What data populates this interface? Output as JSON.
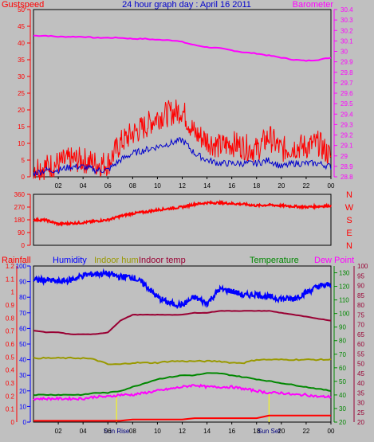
{
  "title": "24 hour graph day : April 16 2011",
  "colors": {
    "background": "#c0c0c0",
    "gust": "#ff0000",
    "wind": "#0000cc",
    "barometer": "#ff00ff",
    "direction": "#ff0000",
    "humidity": "#0000ff",
    "indoor_hum": "#999900",
    "indoor_temp": "#990033",
    "temperature": "#008800",
    "dew_point": "#ff00ff",
    "rainfall": "#ff0000",
    "solar": "#ffff00"
  },
  "chart_data": [
    {
      "type": "line",
      "panel": "wind",
      "title": "24 hour graph day : April 16 2011",
      "left_axis_label": "Gustspeed",
      "right_axis_label": "Barometer",
      "x_ticks": [
        "02",
        "04",
        "06",
        "08",
        "10",
        "12",
        "14",
        "16",
        "18",
        "20",
        "22",
        "00"
      ],
      "ylim_left": [
        0,
        50
      ],
      "y_ticks_left": [
        "50",
        "45",
        "40",
        "35",
        "30",
        "25",
        "20",
        "15",
        "10",
        "5",
        "0"
      ],
      "ylim_right": [
        28.8,
        30.4
      ],
      "y_ticks_right": [
        "30.4",
        "30.3",
        "30.2",
        "30.1",
        "30",
        "29.9",
        "29.8",
        "29.7",
        "29.6",
        "29.5",
        "29.4",
        "29.3",
        "29.2",
        "29.1",
        "29",
        "28.9",
        "28.8"
      ],
      "x_hours": [
        0,
        1,
        2,
        3,
        4,
        5,
        6,
        7,
        8,
        9,
        10,
        11,
        12,
        13,
        14,
        15,
        16,
        17,
        18,
        19,
        20,
        21,
        22,
        23,
        24
      ],
      "series": [
        {
          "key": "gust",
          "values": [
            3,
            3,
            4,
            5,
            5,
            4,
            4,
            10,
            13,
            15,
            18,
            19,
            20,
            13,
            11,
            9,
            10,
            9,
            8,
            12,
            8,
            9,
            9,
            10,
            6
          ]
        },
        {
          "key": "wind",
          "values": [
            1,
            2,
            2,
            3,
            3,
            2,
            2,
            5,
            7,
            8,
            9,
            10,
            11,
            7,
            5,
            4,
            4,
            4,
            4,
            5,
            3,
            4,
            4,
            4,
            3
          ]
        },
        {
          "key": "barometer",
          "values": [
            30.15,
            30.15,
            30.14,
            30.14,
            30.14,
            30.13,
            30.13,
            30.13,
            30.12,
            30.12,
            30.11,
            30.11,
            30.09,
            30.06,
            30.04,
            30.03,
            30.01,
            29.99,
            29.98,
            29.96,
            29.94,
            29.92,
            29.91,
            29.92,
            29.94
          ]
        }
      ]
    },
    {
      "type": "line",
      "panel": "direction",
      "left_axis_label": "",
      "right_axis_label": "NWSEN",
      "right_letters": [
        "N",
        "W",
        "S",
        "E",
        "N"
      ],
      "ylim": [
        0,
        360
      ],
      "y_ticks": [
        "360",
        "270",
        "180",
        "90",
        "0"
      ],
      "x_hours": [
        0,
        1,
        2,
        3,
        4,
        5,
        6,
        7,
        8,
        9,
        10,
        11,
        12,
        13,
        14,
        15,
        16,
        17,
        18,
        19,
        20,
        21,
        22,
        23,
        24
      ],
      "series": [
        {
          "key": "direction",
          "values": [
            180,
            178,
            150,
            155,
            160,
            170,
            180,
            205,
            225,
            235,
            250,
            260,
            270,
            290,
            300,
            300,
            295,
            290,
            280,
            285,
            280,
            275,
            270,
            275,
            280
          ]
        }
      ]
    },
    {
      "type": "line",
      "panel": "climate",
      "legend": [
        "Rainfall",
        "Humidity",
        "Indoor hum",
        "Indoor temp",
        "Temperature",
        "Dew Point"
      ],
      "x_ticks": [
        "02",
        "04",
        "Sun Rise",
        "06",
        "08",
        "10",
        "12",
        "14",
        "16",
        "18",
        "Sun Set",
        "20",
        "22",
        "00"
      ],
      "ylim_rain": [
        0,
        1.2
      ],
      "y_ticks_rain": [
        "1.2",
        "1.1",
        "1",
        "0.9",
        "0.8",
        "0.7",
        "0.6",
        "0.5",
        "0.4",
        "0.3",
        "0.2",
        "0.1",
        "0"
      ],
      "ylim_humidity": [
        0,
        100
      ],
      "y_ticks_humidity": [
        "100",
        "90",
        "80",
        "70",
        "60",
        "50",
        "40",
        "30",
        "20",
        "10",
        "0"
      ],
      "ylim_temp_green": [
        20,
        135
      ],
      "y_ticks_temp_green": [
        "130",
        "120",
        "110",
        "100",
        "90",
        "80",
        "70",
        "60",
        "50",
        "40",
        "30",
        "20"
      ],
      "ylim_temp_maroon": [
        20,
        100
      ],
      "y_ticks_temp_maroon": [
        "100",
        "95",
        "90",
        "85",
        "80",
        "75",
        "70",
        "65",
        "60",
        "55",
        "50",
        "45",
        "40",
        "35",
        "30",
        "25",
        "20"
      ],
      "x_hours": [
        0,
        1,
        2,
        3,
        4,
        5,
        6,
        7,
        8,
        9,
        10,
        11,
        12,
        13,
        14,
        15,
        16,
        17,
        18,
        19,
        20,
        21,
        22,
        23,
        24
      ],
      "series": [
        {
          "key": "humidity",
          "axis": "humidity",
          "values": [
            91,
            91,
            90,
            91,
            94,
            95,
            95,
            93,
            93,
            88,
            80,
            76,
            75,
            80,
            76,
            85,
            84,
            81,
            82,
            80,
            79,
            79,
            83,
            87,
            88
          ]
        },
        {
          "key": "indoor_temp",
          "axis": "temp_maroon",
          "values": [
            67,
            66,
            66,
            65,
            65,
            65,
            66,
            72,
            75,
            75,
            75,
            75,
            75,
            76,
            76,
            77,
            77,
            77,
            77,
            77,
            76,
            75,
            74,
            73,
            72
          ]
        },
        {
          "key": "indoor_hum",
          "axis": "humidity",
          "values": [
            41,
            41,
            41,
            41,
            41,
            40,
            37,
            37,
            38,
            38,
            38,
            39,
            39,
            39,
            39,
            39,
            38,
            38,
            40,
            40,
            40,
            40,
            40,
            40,
            40
          ]
        },
        {
          "key": "temperature",
          "axis": "temp_maroon",
          "values": [
            34,
            34,
            34,
            34,
            34,
            35,
            35,
            36,
            38,
            40,
            42,
            43,
            44,
            44,
            45,
            45,
            44,
            43,
            42,
            41,
            40,
            39,
            38,
            37,
            36
          ]
        },
        {
          "key": "dew_point",
          "axis": "temp_maroon",
          "values": [
            32,
            32,
            32,
            32,
            32,
            33,
            33,
            34,
            34,
            35,
            36,
            37,
            38,
            39,
            38,
            38,
            38,
            37,
            36,
            35,
            35,
            34,
            34,
            33,
            33
          ]
        },
        {
          "key": "rainfall",
          "axis": "rain",
          "values": [
            0.01,
            0.01,
            0.01,
            0.01,
            0.01,
            0.01,
            0.01,
            0.01,
            0.02,
            0.02,
            0.02,
            0.02,
            0.02,
            0.03,
            0.03,
            0.03,
            0.03,
            0.03,
            0.03,
            0.05,
            0.05,
            0.05,
            0.05,
            0.05,
            0.05
          ]
        }
      ]
    }
  ]
}
